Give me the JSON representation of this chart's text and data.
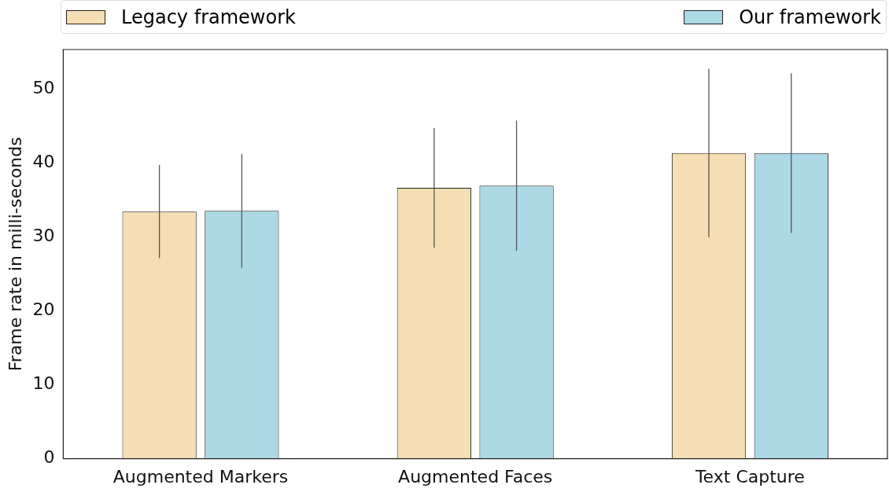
{
  "chart_data": {
    "type": "bar",
    "ylabel": "Frame rate in milli-seconds",
    "categories": [
      "Augmented Markers",
      "Augmented Faces",
      "Text Capture"
    ],
    "series": [
      {
        "name": "Legacy framework",
        "color": "#f5deb3",
        "values": [
          33.4,
          36.6,
          41.3
        ],
        "errors": [
          6.3,
          8.1,
          11.4
        ]
      },
      {
        "name": "Our framework",
        "color": "#add8e6",
        "values": [
          33.5,
          36.9,
          41.3
        ],
        "errors": [
          7.7,
          8.8,
          10.8
        ]
      }
    ],
    "ylim": [
      0,
      55.3
    ],
    "yticks": [
      0,
      10,
      20,
      30,
      40,
      50
    ],
    "grid": false,
    "legend": "top"
  }
}
